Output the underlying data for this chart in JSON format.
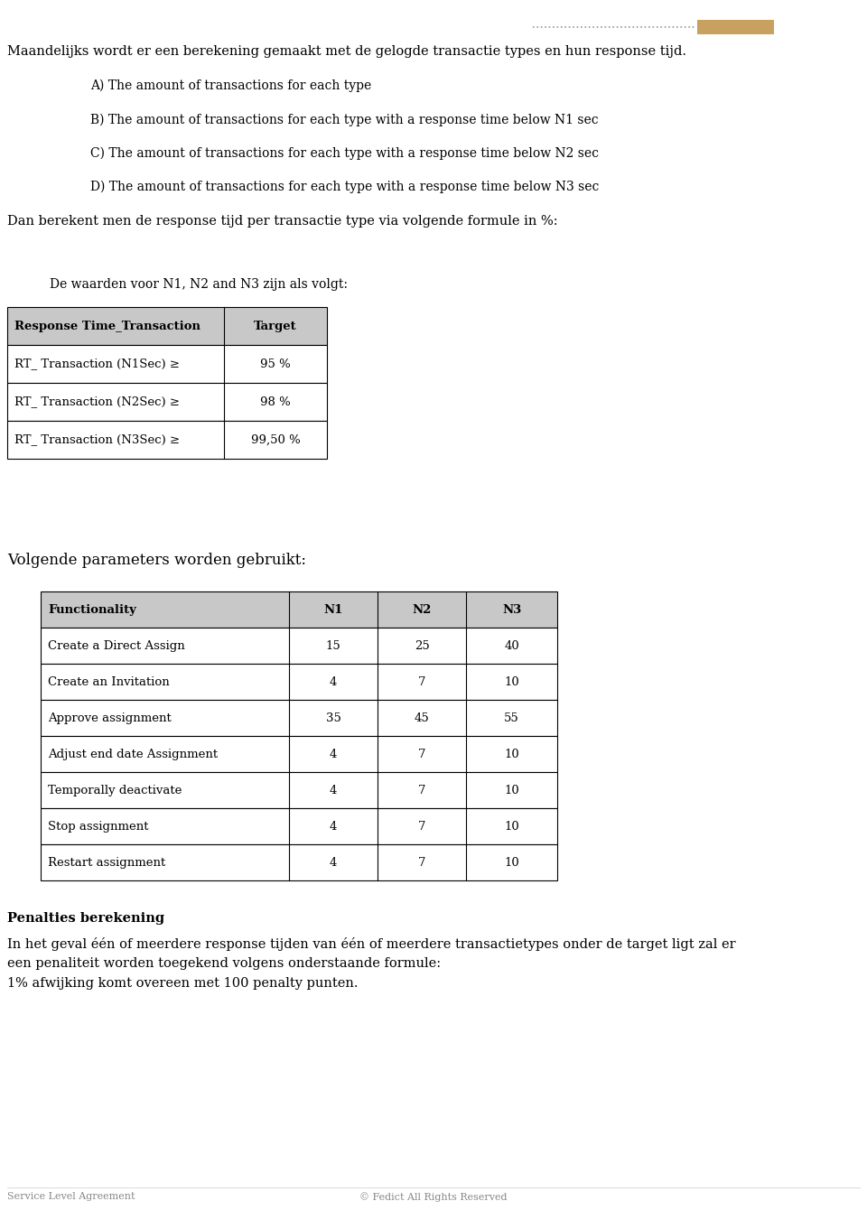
{
  "bg_color": "#ffffff",
  "page_width": 9.6,
  "page_height": 13.61,
  "intro_text": "Maandelijks wordt er een berekening gemaakt met de gelogde transactie types en hun response tijd.",
  "list_items": [
    "A) The amount of transactions for each type",
    "B) The amount of transactions for each type with a response time below N1 sec",
    "C) The amount of transactions for each type with a response time below N2 sec",
    "D) The amount of transactions for each type with a response time below N3 sec"
  ],
  "formula_text": "Dan berekent men de response tijd per transactie type via volgende formule in %:",
  "waarden_text": "De waarden voor N1, N2 and N3 zijn als volgt:",
  "table1_headers": [
    "Response Time_Transaction",
    "Target"
  ],
  "table1_rows": [
    [
      "RT_ Transaction (N1Sec) ≥",
      "95 %"
    ],
    [
      "RT_ Transaction (N2Sec) ≥",
      "98 %"
    ],
    [
      "RT_ Transaction (N3Sec) ≥",
      "99,50 %"
    ]
  ],
  "params_text": "Volgende parameters worden gebruikt:",
  "table2_headers": [
    "Functionality",
    "N1",
    "N2",
    "N3"
  ],
  "table2_rows": [
    [
      "Create a Direct Assign",
      "15",
      "25",
      "40"
    ],
    [
      "Create an Invitation",
      "4",
      "7",
      "10"
    ],
    [
      "Approve assignment",
      "35",
      "45",
      "55"
    ],
    [
      "Adjust end date Assignment",
      "4",
      "7",
      "10"
    ],
    [
      "Temporally deactivate",
      "4",
      "7",
      "10"
    ],
    [
      "Stop assignment",
      "4",
      "7",
      "10"
    ],
    [
      "Restart assignment",
      "4",
      "7",
      "10"
    ]
  ],
  "penalties_title": "Penalties berekening",
  "penalties_line1": "In het geval één of meerdere response tijden van één of meerdere transactietypes onder de target ligt zal er",
  "penalties_line2": "een penaliteit worden toegekend volgens onderstaande formule:",
  "penalties_line3": "1% afwijking komt overeen met 100 penalty punten.",
  "footer_left": "Service Level Agreement",
  "footer_right": "© Fedict All Rights Reserved",
  "header_bar_color": "#c8a060",
  "table_header_bg": "#c8c8c8",
  "table_border_color": "#000000",
  "text_color": "#000000",
  "footer_color": "#888888",
  "dpi": 100
}
